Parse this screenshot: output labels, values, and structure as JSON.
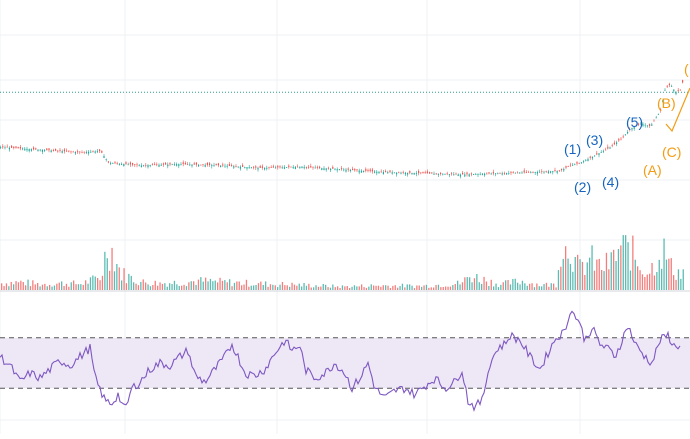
{
  "colors": {
    "up": "#26a69a",
    "down": "#ef5350",
    "grid": "#eef0f3",
    "pane_divider": "#d1d4dc",
    "price_level": "#2a9d8f",
    "impulse_label": "#2962ff",
    "impulse_label_text": "#1565c0",
    "correction_label": "#f39c12",
    "rsi_line": "#7e57c2",
    "rsi_band": "#ede7f6",
    "rsi_band_border": "#555555"
  },
  "chart_data": [
    {
      "type": "candlestick",
      "pane": "price",
      "x": "bar index",
      "ylim": [
        0,
        100
      ],
      "reference_line": 70,
      "series": [
        {
          "values": [
            [
              0,
              49
            ],
            [
              20,
              48.5
            ],
            [
              40,
              48
            ],
            [
              60,
              47.5
            ],
            [
              80,
              47
            ],
            [
              100,
              47.5
            ],
            [
              108,
              43
            ],
            [
              140,
              42
            ],
            [
              180,
              42.5
            ],
            [
              220,
              42
            ],
            [
              260,
              41
            ],
            [
              300,
              41.5
            ],
            [
              340,
              40.5
            ],
            [
              380,
              39.5
            ],
            [
              420,
              39
            ],
            [
              460,
              38.5
            ],
            [
              500,
              39
            ],
            [
              540,
              39.5
            ],
            [
              560,
              40
            ],
            [
              570,
              42
            ],
            [
              580,
              43
            ],
            [
              590,
              45
            ],
            [
              600,
              47
            ],
            [
              610,
              49
            ],
            [
              620,
              52
            ],
            [
              630,
              56
            ],
            [
              640,
              58
            ],
            [
              650,
              57
            ],
            [
              660,
              63
            ],
            [
              665,
              72
            ],
            [
              670,
              73
            ],
            [
              675,
              70
            ],
            [
              680,
              71
            ],
            [
              690,
              85
            ]
          ]
        }
      ],
      "wave_labels": [
        {
          "text": "(1)",
          "degree": "impulse"
        },
        {
          "text": "(2)",
          "degree": "impulse"
        },
        {
          "text": "(3)",
          "degree": "impulse"
        },
        {
          "text": "(4)",
          "degree": "impulse"
        },
        {
          "text": "(5)",
          "degree": "impulse"
        },
        {
          "text": "(A)",
          "degree": "correction"
        },
        {
          "text": "(B)",
          "degree": "correction"
        },
        {
          "text": "(C)",
          "degree": "correction"
        },
        {
          "text": "(",
          "degree": "correction"
        }
      ]
    },
    {
      "type": "bar",
      "pane": "volume",
      "ylim": [
        0,
        100
      ],
      "series": [
        {
          "values": [
            [
              0,
              12
            ],
            [
              20,
              14
            ],
            [
              40,
              10
            ],
            [
              60,
              12
            ],
            [
              80,
              11
            ],
            [
              100,
              22
            ],
            [
              107,
              80
            ],
            [
              113,
              65
            ],
            [
              120,
              30
            ],
            [
              140,
              14
            ],
            [
              160,
              12
            ],
            [
              200,
              16
            ],
            [
              260,
              11
            ],
            [
              300,
              9
            ],
            [
              340,
              6
            ],
            [
              380,
              8
            ],
            [
              420,
              7
            ],
            [
              460,
              12
            ],
            [
              470,
              25
            ],
            [
              500,
              10
            ],
            [
              520,
              16
            ],
            [
              540,
              9
            ],
            [
              556,
              10
            ],
            [
              560,
              90
            ],
            [
              565,
              70
            ],
            [
              570,
              85
            ],
            [
              575,
              45
            ],
            [
              580,
              38
            ],
            [
              590,
              55
            ],
            [
              600,
              40
            ],
            [
              610,
              48
            ],
            [
              620,
              75
            ],
            [
              625,
              72
            ],
            [
              630,
              70
            ],
            [
              640,
              40
            ],
            [
              650,
              35
            ],
            [
              660,
              72
            ],
            [
              665,
              65
            ],
            [
              670,
              40
            ],
            [
              680,
              30
            ]
          ]
        }
      ]
    },
    {
      "type": "line",
      "pane": "rsi",
      "ylim": [
        0,
        100
      ],
      "band": [
        30,
        70
      ],
      "series": [
        {
          "values": [
            [
              0,
              55
            ],
            [
              10,
              48
            ],
            [
              20,
              35
            ],
            [
              30,
              42
            ],
            [
              40,
              38
            ],
            [
              50,
              45
            ],
            [
              60,
              52
            ],
            [
              70,
              48
            ],
            [
              80,
              55
            ],
            [
              90,
              62
            ],
            [
              95,
              38
            ],
            [
              105,
              20
            ],
            [
              112,
              18
            ],
            [
              118,
              25
            ],
            [
              125,
              12
            ],
            [
              132,
              30
            ],
            [
              140,
              35
            ],
            [
              150,
              45
            ],
            [
              160,
              50
            ],
            [
              170,
              48
            ],
            [
              180,
              55
            ],
            [
              188,
              60
            ],
            [
              195,
              40
            ],
            [
              205,
              35
            ],
            [
              215,
              45
            ],
            [
              225,
              55
            ],
            [
              232,
              65
            ],
            [
              238,
              55
            ],
            [
              245,
              42
            ],
            [
              255,
              40
            ],
            [
              265,
              45
            ],
            [
              275,
              58
            ],
            [
              285,
              68
            ],
            [
              292,
              60
            ],
            [
              300,
              64
            ],
            [
              305,
              45
            ],
            [
              315,
              38
            ],
            [
              325,
              42
            ],
            [
              335,
              50
            ],
            [
              345,
              42
            ],
            [
              352,
              30
            ],
            [
              360,
              38
            ],
            [
              368,
              50
            ],
            [
              375,
              30
            ],
            [
              385,
              22
            ],
            [
              395,
              28
            ],
            [
              405,
              30
            ],
            [
              415,
              25
            ],
            [
              425,
              32
            ],
            [
              435,
              38
            ],
            [
              445,
              30
            ],
            [
              455,
              35
            ],
            [
              462,
              45
            ],
            [
              468,
              20
            ],
            [
              475,
              15
            ],
            [
              482,
              20
            ],
            [
              490,
              50
            ],
            [
              498,
              62
            ],
            [
              505,
              65
            ],
            [
              510,
              72
            ],
            [
              520,
              68
            ],
            [
              530,
              55
            ],
            [
              540,
              45
            ],
            [
              548,
              58
            ],
            [
              556,
              70
            ],
            [
              565,
              75
            ],
            [
              570,
              92
            ],
            [
              578,
              85
            ],
            [
              585,
              68
            ],
            [
              592,
              78
            ],
            [
              600,
              65
            ],
            [
              610,
              60
            ],
            [
              615,
              55
            ],
            [
              622,
              68
            ],
            [
              628,
              80
            ],
            [
              635,
              65
            ],
            [
              645,
              55
            ],
            [
              652,
              50
            ],
            [
              660,
              68
            ],
            [
              668,
              72
            ],
            [
              675,
              62
            ],
            [
              680,
              65
            ]
          ]
        }
      ]
    }
  ]
}
